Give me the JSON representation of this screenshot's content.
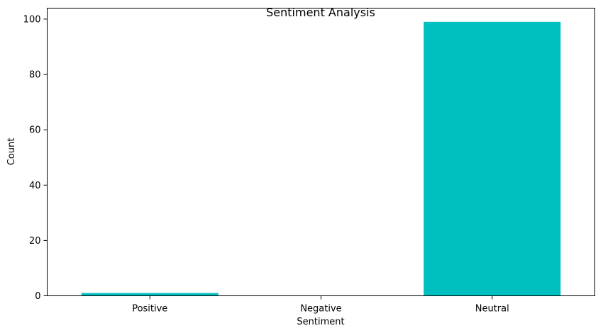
{
  "chart_data": {
    "type": "bar",
    "title": "Sentiment Analysis",
    "xlabel": "Sentiment",
    "ylabel": "Count",
    "categories": [
      "Positive",
      "Negative",
      "Neutral"
    ],
    "values": [
      1,
      0,
      99
    ],
    "ylim": [
      0,
      103.95
    ],
    "yticks": [
      0,
      20,
      40,
      60,
      80,
      100
    ],
    "bar_color": "#00bfbf",
    "grid": false,
    "legend": "none"
  }
}
